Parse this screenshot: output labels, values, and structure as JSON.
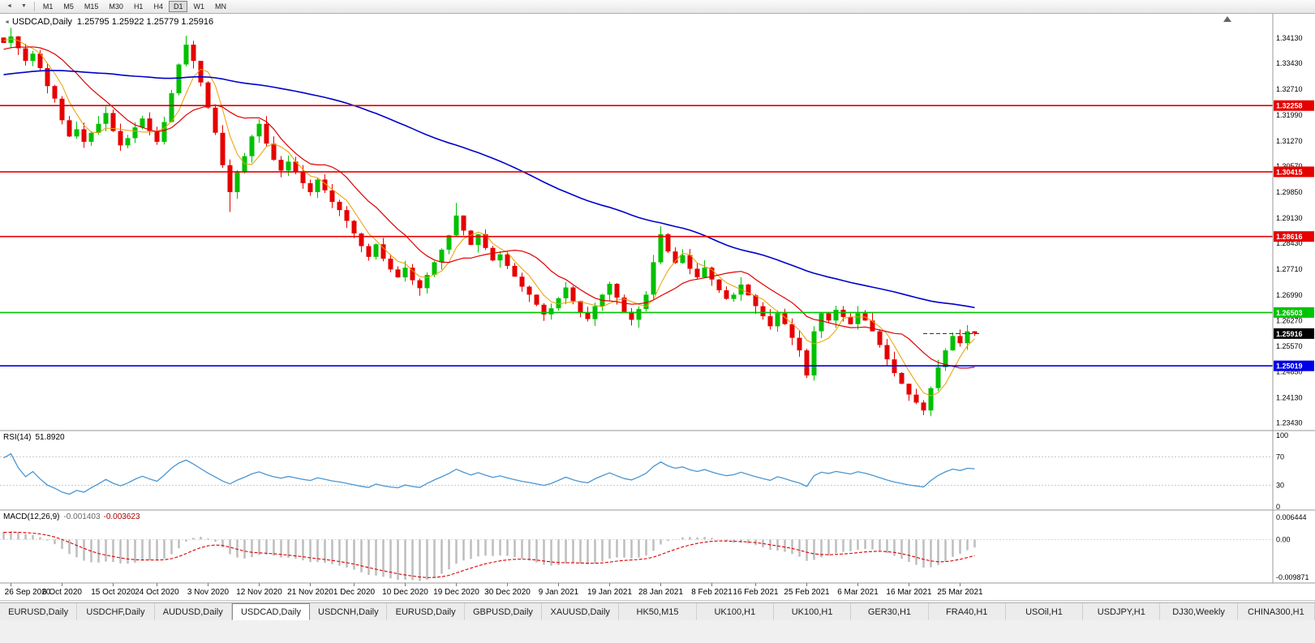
{
  "toolbar": {
    "menu_icons": [
      "chart-menu",
      "period-menu"
    ],
    "timeframes": [
      {
        "label": "M1",
        "active": false
      },
      {
        "label": "M5",
        "active": false
      },
      {
        "label": "M15",
        "active": false
      },
      {
        "label": "M30",
        "active": false
      },
      {
        "label": "H1",
        "active": false
      },
      {
        "label": "H4",
        "active": false
      },
      {
        "label": "D1",
        "active": true
      },
      {
        "label": "W1",
        "active": false
      },
      {
        "label": "MN",
        "active": false
      }
    ]
  },
  "chart": {
    "title": "USDCAD,Daily",
    "ohlc": "1.25795 1.25922 1.25779 1.25916"
  },
  "rsi_panel": {
    "label": "RSI(14)",
    "value": "51.8920"
  },
  "macd_panel": {
    "label": "MACD(12,26,9)",
    "main_value": "-0.001403",
    "signal_value": "-0.003623"
  },
  "tabs": [
    {
      "label": "EURUSD,Daily",
      "active": false
    },
    {
      "label": "USDCHF,Daily",
      "active": false
    },
    {
      "label": "AUDUSD,Daily",
      "active": false
    },
    {
      "label": "USDCAD,Daily",
      "active": true
    },
    {
      "label": "USDCNH,Daily",
      "active": false
    },
    {
      "label": "EURUSD,Daily",
      "active": false
    },
    {
      "label": "GBPUSD,Daily",
      "active": false
    },
    {
      "label": "XAUUSD,Daily",
      "active": false
    },
    {
      "label": "HK50,M15",
      "active": false
    },
    {
      "label": "UK100,H1",
      "active": false
    },
    {
      "label": "UK100,H1",
      "active": false
    },
    {
      "label": "GER30,H1",
      "active": false
    },
    {
      "label": "FRA40,H1",
      "active": false
    },
    {
      "label": "USOil,H1",
      "active": false
    },
    {
      "label": "USDJPY,H1",
      "active": false
    },
    {
      "label": "DJ30,Weekly",
      "active": false
    },
    {
      "label": "CHINA300,H1",
      "active": false
    }
  ],
  "chart_data": {
    "type": "candlestick",
    "symbol": "USDCAD",
    "timeframe": "Daily",
    "price_axis": {
      "top_price": 1.3481,
      "bottom_price": 1.2322,
      "ticks": [
        "1.34130",
        "1.33430",
        "1.32710",
        "1.31990",
        "1.31270",
        "1.30570",
        "1.29850",
        "1.29130",
        "1.28430",
        "1.27710",
        "1.26990",
        "1.26270",
        "1.25570",
        "1.24850",
        "1.24130",
        "1.23430"
      ]
    },
    "hlines": [
      {
        "value": 1.32258,
        "label": "1.32258",
        "color": "#e60000"
      },
      {
        "value": 1.30415,
        "label": "1.30415",
        "color": "#e60000"
      },
      {
        "value": 1.28616,
        "label": "1.28616",
        "color": "#e60000"
      },
      {
        "value": 1.26503,
        "label": "1.26503",
        "color": "#00c400"
      },
      {
        "value": 1.25019,
        "label": "1.25019",
        "color": "#0000e6"
      }
    ],
    "current_price": {
      "value": 1.25916,
      "label": "1.25916",
      "box_color": "#000000"
    },
    "date_labels": [
      {
        "text": "26 Sep 2020",
        "i": 1
      },
      {
        "text": "6 Oct 2020",
        "i": 8
      },
      {
        "text": "15 Oct 2020",
        "i": 15
      },
      {
        "text": "24 Oct 2020",
        "i": 21
      },
      {
        "text": "3 Nov 2020",
        "i": 28
      },
      {
        "text": "12 Nov 2020",
        "i": 35
      },
      {
        "text": "21 Nov 2020",
        "i": 42
      },
      {
        "text": "1 Dec 2020",
        "i": 48
      },
      {
        "text": "10 Dec 2020",
        "i": 55
      },
      {
        "text": "19 Dec 2020",
        "i": 62
      },
      {
        "text": "30 Dec 2020",
        "i": 69
      },
      {
        "text": "9 Jan 2021",
        "i": 76
      },
      {
        "text": "19 Jan 2021",
        "i": 83
      },
      {
        "text": "28 Jan 2021",
        "i": 90
      },
      {
        "text": "8 Feb 2021",
        "i": 97
      },
      {
        "text": "16 Feb 2021",
        "i": 103
      },
      {
        "text": "25 Feb 2021",
        "i": 110
      },
      {
        "text": "6 Mar 2021",
        "i": 117
      },
      {
        "text": "16 Mar 2021",
        "i": 124
      },
      {
        "text": "25 Mar 2021",
        "i": 131
      }
    ],
    "closes": [
      1.34,
      1.3418,
      1.3385,
      1.335,
      1.337,
      1.333,
      1.328,
      1.3245,
      1.3185,
      1.314,
      1.316,
      1.3125,
      1.315,
      1.3175,
      1.3205,
      1.3155,
      1.3115,
      1.3135,
      1.3165,
      1.319,
      1.3155,
      1.3125,
      1.318,
      1.326,
      1.334,
      1.3395,
      1.335,
      1.329,
      1.322,
      1.315,
      1.306,
      1.2985,
      1.304,
      1.3085,
      1.314,
      1.3175,
      1.312,
      1.3075,
      1.3045,
      1.307,
      1.304,
      1.301,
      1.2985,
      1.302,
      1.299,
      1.2958,
      1.2935,
      1.2905,
      1.287,
      1.2835,
      1.2805,
      1.284,
      1.28,
      1.277,
      1.2748,
      1.2775,
      1.274,
      1.2718,
      1.2755,
      1.279,
      1.2825,
      1.2865,
      1.292,
      1.2878,
      1.2838,
      1.2868,
      1.283,
      1.2795,
      1.2812,
      1.278,
      1.275,
      1.2722,
      1.27,
      1.2672,
      1.2645,
      1.2662,
      1.269,
      1.272,
      1.2682,
      1.265,
      1.2632,
      1.2668,
      1.27,
      1.273,
      1.2692,
      1.2652,
      1.263,
      1.266,
      1.27,
      1.279,
      1.2868,
      1.282,
      1.2788,
      1.281,
      1.2772,
      1.2748,
      1.2775,
      1.2742,
      1.2712,
      1.2688,
      1.27,
      1.2728,
      1.2698,
      1.2668,
      1.264,
      1.2612,
      1.2648,
      1.2618,
      1.258,
      1.2545,
      1.2475,
      1.2598,
      1.2648,
      1.2628,
      1.2658,
      1.2638,
      1.2618,
      1.2648,
      1.2628,
      1.2598,
      1.256,
      1.252,
      1.2482,
      1.2452,
      1.2422,
      1.24,
      1.2378,
      1.244,
      1.2498,
      1.2545,
      1.2585,
      1.2565,
      1.2598,
      1.25916
    ],
    "wick_overrides": {
      "1": {
        "high": 1.3442
      },
      "25": {
        "high": 1.342
      },
      "31": {
        "low": 1.293
      },
      "62": {
        "high": 1.2955
      },
      "90": {
        "high": 1.289
      },
      "110": {
        "low": 1.2468
      },
      "126": {
        "low": 1.2365
      }
    },
    "render_prehistory": {
      "count": 80,
      "from": 1.32,
      "to": 1.34
    },
    "colors": {
      "up": "#00c000",
      "down": "#e60000",
      "ma_fast": "#e8a000",
      "ma_mid": "#dd0000",
      "ma_slow": "#0000cc",
      "rsi": "#4a96d2",
      "macd_hist": "#bdbdbd",
      "macd_signal": "#dd0000"
    },
    "rsi": {
      "period": 14,
      "levels": [
        100,
        70,
        30,
        0
      ]
    },
    "macd": {
      "fast": 12,
      "slow": 26,
      "signal": 9,
      "axis_labels": [
        "0.006444",
        "0.00",
        "-0.009871"
      ],
      "top": 0.006444,
      "bottom": -0.009871
    }
  }
}
